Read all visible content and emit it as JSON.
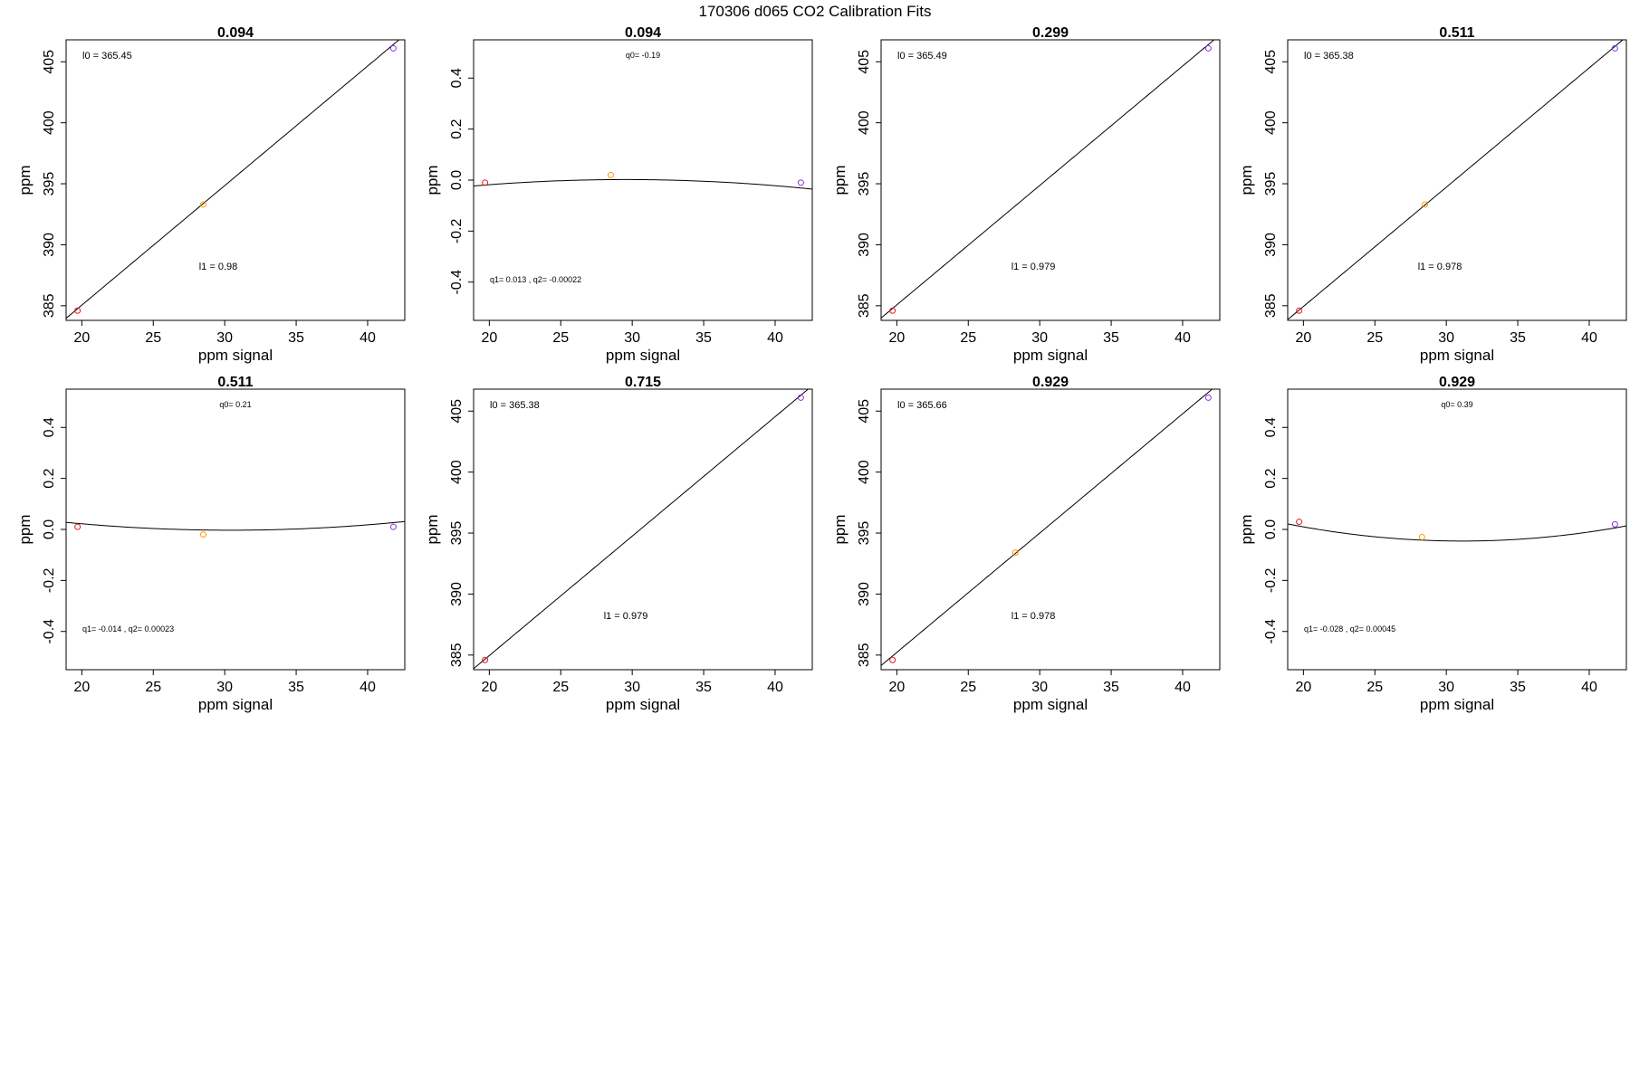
{
  "figure": {
    "title": "170306   d065   CO2 Calibration Fits"
  },
  "colors": {
    "low_point": "#e31a1c",
    "mid_point": "#ff9900",
    "high_point": "#8a2be2",
    "fit_line": "#000000"
  },
  "chart_data": [
    {
      "type": "scatter",
      "fit": "linear",
      "title": "0.094",
      "xlabel": "ppm signal",
      "ylabel": "ppm",
      "xlim": [
        18.9,
        42.6
      ],
      "ylim": [
        383.8,
        406.8
      ],
      "xticks": [
        20,
        25,
        30,
        35,
        40
      ],
      "yticks": [
        385,
        390,
        395,
        400,
        405
      ],
      "points": [
        [
          19.7,
          384.6
        ],
        [
          28.5,
          393.3
        ],
        [
          41.8,
          406.1
        ]
      ],
      "fit_params": {
        "l0": 365.45,
        "l1": 0.98
      },
      "annotations": {
        "upper": "l0 =  365.45",
        "lower": "l1 =  0.98"
      }
    },
    {
      "type": "scatter",
      "fit": "quadratic",
      "title": "0.094",
      "xlabel": "ppm signal",
      "ylabel": "ppm",
      "xlim": [
        18.9,
        42.6
      ],
      "ylim": [
        -0.55,
        0.55
      ],
      "xticks": [
        20,
        25,
        30,
        35,
        40
      ],
      "yticks": [
        -0.4,
        -0.2,
        0.0,
        0.2,
        0.4
      ],
      "points": [
        [
          19.7,
          -0.01
        ],
        [
          28.5,
          0.02
        ],
        [
          41.8,
          -0.01
        ]
      ],
      "fit_params": {
        "q0": -0.19,
        "q1": 0.013,
        "q2": -0.00022
      },
      "annotations": {
        "upper": "q0= -0.19",
        "lower": "q1= 0.013 , q2= -0.00022"
      }
    },
    {
      "type": "scatter",
      "fit": "linear",
      "title": "0.299",
      "xlabel": "ppm signal",
      "ylabel": "ppm",
      "xlim": [
        18.9,
        42.6
      ],
      "ylim": [
        383.8,
        406.8
      ],
      "xticks": [
        20,
        25,
        30,
        35,
        40
      ],
      "yticks": [
        385,
        390,
        395,
        400,
        405
      ],
      "points": [
        [
          19.7,
          384.6
        ],
        [
          41.8,
          406.1
        ]
      ],
      "fit_params": {
        "l0": 365.49,
        "l1": 0.979
      },
      "annotations": {
        "upper": "l0 =  365.49",
        "lower": "l1 =  0.979"
      }
    },
    {
      "type": "scatter",
      "fit": "linear",
      "title": "0.511",
      "xlabel": "ppm signal",
      "ylabel": "ppm",
      "xlim": [
        18.9,
        42.6
      ],
      "ylim": [
        383.8,
        406.8
      ],
      "xticks": [
        20,
        25,
        30,
        35,
        40
      ],
      "yticks": [
        385,
        390,
        395,
        400,
        405
      ],
      "points": [
        [
          19.7,
          384.6
        ],
        [
          28.5,
          393.3
        ],
        [
          41.8,
          406.1
        ]
      ],
      "fit_params": {
        "l0": 365.38,
        "l1": 0.978
      },
      "annotations": {
        "upper": "l0 =  365.38",
        "lower": "l1 =  0.978"
      }
    },
    {
      "type": "scatter",
      "fit": "quadratic",
      "title": "0.511",
      "xlabel": "ppm signal",
      "ylabel": "ppm",
      "xlim": [
        18.9,
        42.6
      ],
      "ylim": [
        -0.55,
        0.55
      ],
      "xticks": [
        20,
        25,
        30,
        35,
        40
      ],
      "yticks": [
        -0.4,
        -0.2,
        0.0,
        0.2,
        0.4
      ],
      "points": [
        [
          19.7,
          0.01
        ],
        [
          28.5,
          -0.02
        ],
        [
          41.8,
          0.01
        ]
      ],
      "fit_params": {
        "q0": 0.21,
        "q1": -0.014,
        "q2": 0.00023
      },
      "annotations": {
        "upper": "q0= 0.21",
        "lower": "q1= -0.014 , q2= 0.00023"
      }
    },
    {
      "type": "scatter",
      "fit": "linear",
      "title": "0.715",
      "xlabel": "ppm signal",
      "ylabel": "ppm",
      "xlim": [
        18.9,
        42.6
      ],
      "ylim": [
        383.8,
        406.8
      ],
      "xticks": [
        20,
        25,
        30,
        35,
        40
      ],
      "yticks": [
        385,
        390,
        395,
        400,
        405
      ],
      "points": [
        [
          19.7,
          384.6
        ],
        [
          41.8,
          406.1
        ]
      ],
      "fit_params": {
        "l0": 365.38,
        "l1": 0.979
      },
      "annotations": {
        "upper": "l0 =  365.38",
        "lower": "l1 =  0.979"
      }
    },
    {
      "type": "scatter",
      "fit": "linear",
      "title": "0.929",
      "xlabel": "ppm signal",
      "ylabel": "ppm",
      "xlim": [
        18.9,
        42.6
      ],
      "ylim": [
        383.8,
        406.8
      ],
      "xticks": [
        20,
        25,
        30,
        35,
        40
      ],
      "yticks": [
        385,
        390,
        395,
        400,
        405
      ],
      "points": [
        [
          19.7,
          384.6
        ],
        [
          28.3,
          393.4
        ],
        [
          41.8,
          406.1
        ]
      ],
      "fit_params": {
        "l0": 365.66,
        "l1": 0.978
      },
      "annotations": {
        "upper": "l0 =  365.66",
        "lower": "l1 =  0.978"
      }
    },
    {
      "type": "scatter",
      "fit": "quadratic",
      "title": "0.929",
      "xlabel": "ppm signal",
      "ylabel": "ppm",
      "xlim": [
        18.9,
        42.6
      ],
      "ylim": [
        -0.55,
        0.55
      ],
      "xticks": [
        20,
        25,
        30,
        35,
        40
      ],
      "yticks": [
        -0.4,
        -0.2,
        0.0,
        0.2,
        0.4
      ],
      "points": [
        [
          19.7,
          0.03
        ],
        [
          28.3,
          -0.03
        ],
        [
          41.8,
          0.02
        ]
      ],
      "fit_params": {
        "q0": 0.39,
        "q1": -0.028,
        "q2": 0.00045
      },
      "annotations": {
        "upper": "q0= 0.39",
        "lower": "q1= -0.028 , q2= 0.00045"
      }
    }
  ]
}
